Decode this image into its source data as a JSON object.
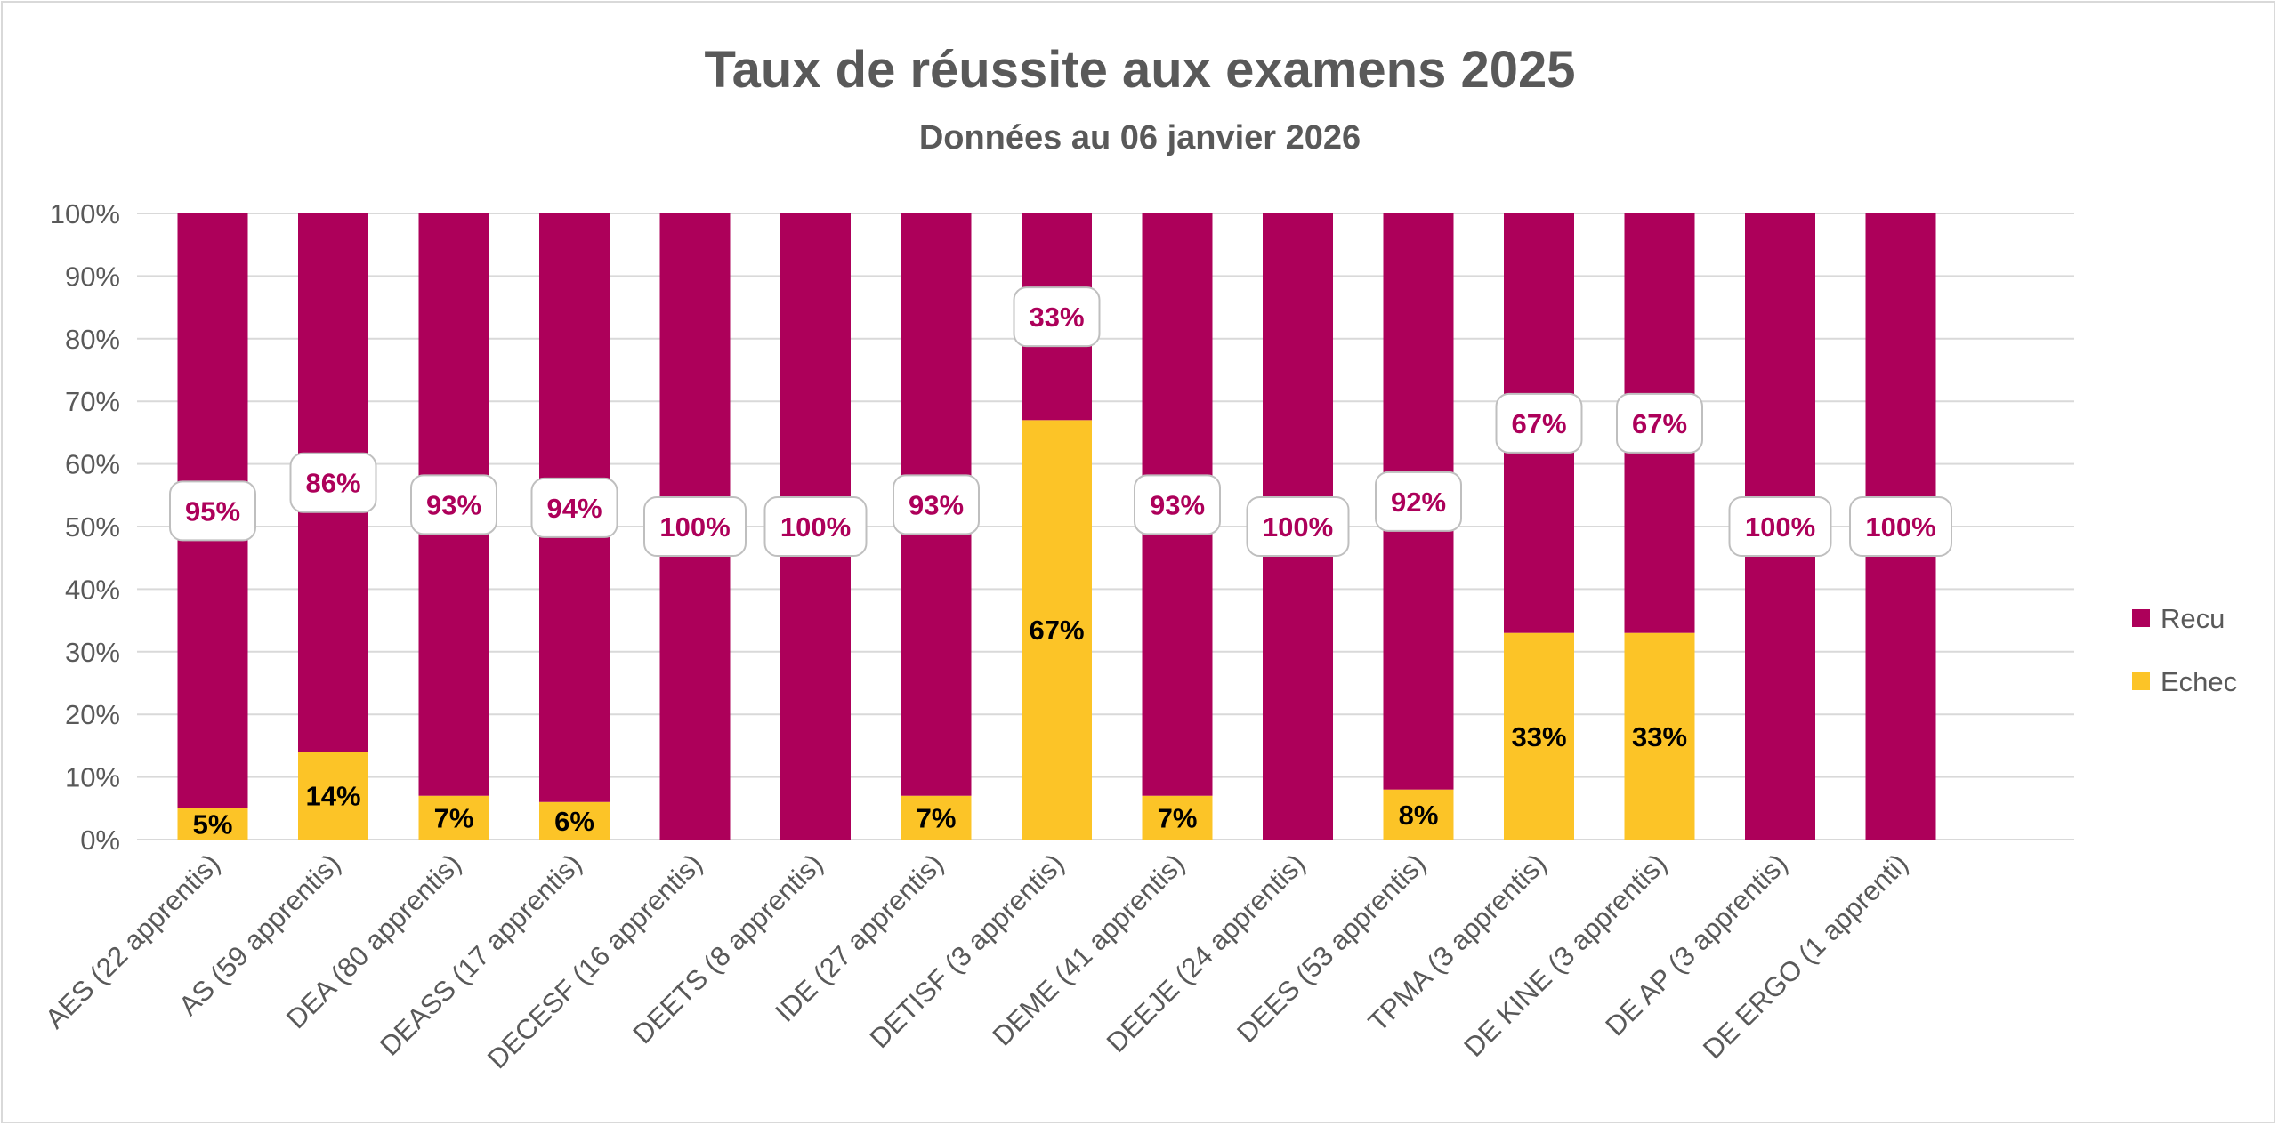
{
  "chart_data": {
    "type": "bar",
    "stacked": true,
    "title": "Taux de réussite aux examens 2025",
    "subtitle": "Données au 06 janvier 2026",
    "categories": [
      "AES (22 apprentis)",
      "AS (59 apprentis)",
      "DEA (80 apprentis)",
      "DEASS (17 apprentis)",
      "DECESF (16 apprentis)",
      "DEETS (8 apprentis)",
      "IDE (27 apprentis)",
      "DETISF (3 apprentis)",
      "DEME (41 apprentis)",
      "DEEJE (24 apprentis)",
      "DEES (53 apprentis)",
      "TPMA (3 apprentis)",
      "DE KINE (3 apprentis)",
      "DE AP (3 apprentis)",
      "DE ERGO (1 apprenti)"
    ],
    "series": [
      {
        "name": "Echec",
        "color": "#fcc427",
        "values": [
          0.05,
          0.14,
          0.07,
          0.06,
          0,
          0,
          0.07,
          0.67,
          0.07,
          0,
          0.08,
          0.33,
          0.33,
          0,
          0
        ],
        "labels": [
          "5%",
          "14%",
          "7%",
          "6%",
          "",
          "",
          "7%",
          "67%",
          "7%",
          "",
          "8%",
          "33%",
          "33%",
          "",
          ""
        ]
      },
      {
        "name": "Recu",
        "color": "#ad005a",
        "values": [
          0.95,
          0.86,
          0.93,
          0.94,
          1.0,
          1.0,
          0.93,
          0.33,
          0.93,
          1.0,
          0.92,
          0.67,
          0.67,
          1.0,
          1.0
        ],
        "labels": [
          "95%",
          "86%",
          "93%",
          "94%",
          "100%",
          "100%",
          "93%",
          "33%",
          "93%",
          "100%",
          "92%",
          "67%",
          "67%",
          "100%",
          "100%"
        ]
      }
    ],
    "ylim": [
      0,
      1
    ],
    "yticks": [
      "0%",
      "10%",
      "20%",
      "30%",
      "40%",
      "50%",
      "60%",
      "70%",
      "80%",
      "90%",
      "100%"
    ],
    "grid": true,
    "legend_position": "right",
    "xlabel": "",
    "ylabel": ""
  }
}
